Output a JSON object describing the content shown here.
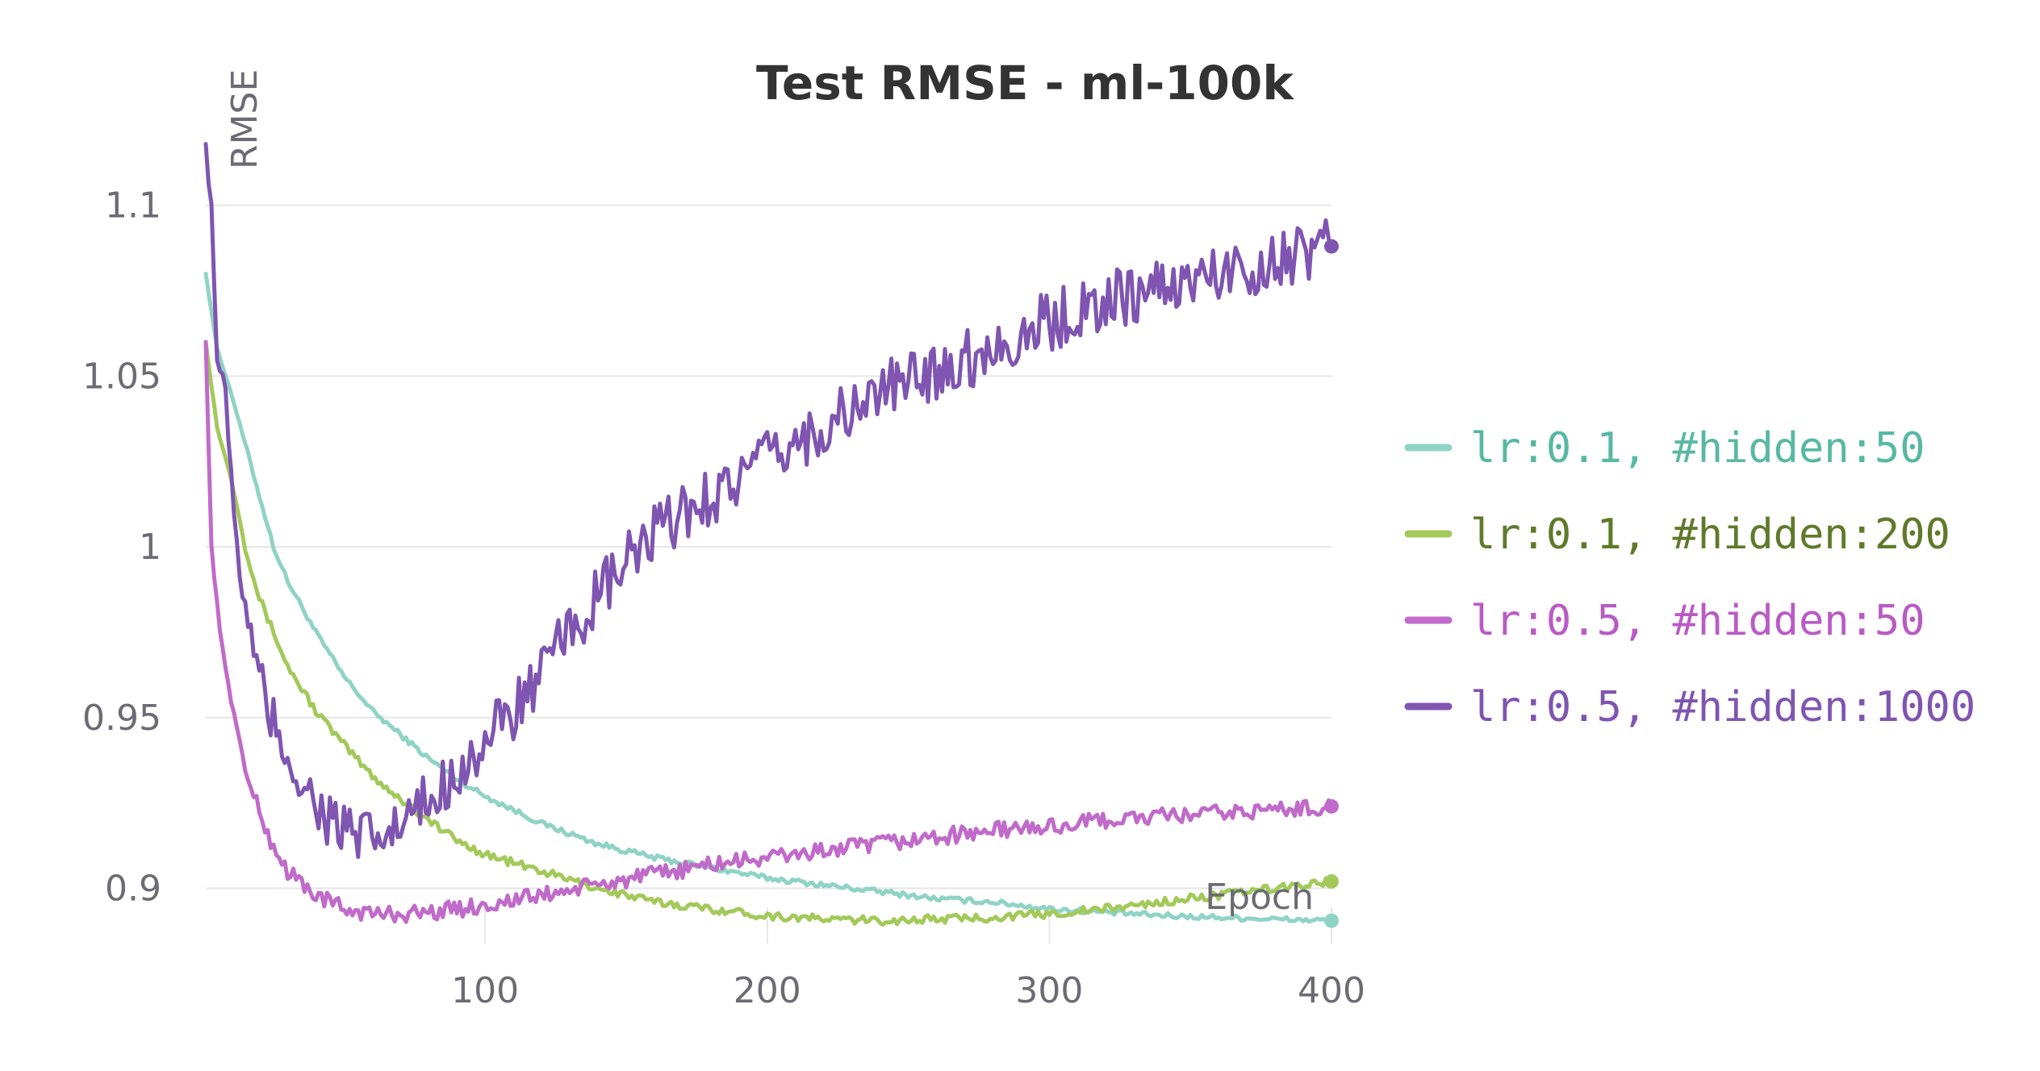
{
  "chart_data": {
    "type": "line",
    "title": "Test RMSE - ml-100k",
    "xlabel": "Epoch",
    "ylabel": "RMSE",
    "xlim": [
      1,
      400
    ],
    "ylim": [
      0.885,
      1.12
    ],
    "xticks": [
      100,
      200,
      300,
      400
    ],
    "yticks": [
      0.9,
      0.95,
      1,
      1.05,
      1.1
    ],
    "ytick_labels": [
      "0.9",
      "0.95",
      "1",
      "1.05",
      "1.1"
    ],
    "grid": "horizontal",
    "legend_position": "right",
    "series": [
      {
        "name": "lr:0.1, #hidden:50",
        "color": "#8fd3c5",
        "text_color": "#58b8a2",
        "points": [
          [
            1,
            1.08
          ],
          [
            5,
            1.058
          ],
          [
            10,
            1.045
          ],
          [
            15,
            1.03
          ],
          [
            20,
            1.015
          ],
          [
            25,
            1.0
          ],
          [
            30,
            0.99
          ],
          [
            40,
            0.975
          ],
          [
            50,
            0.962
          ],
          [
            60,
            0.952
          ],
          [
            70,
            0.945
          ],
          [
            80,
            0.938
          ],
          [
            90,
            0.932
          ],
          [
            100,
            0.927
          ],
          [
            110,
            0.923
          ],
          [
            120,
            0.919
          ],
          [
            140,
            0.913
          ],
          [
            160,
            0.909
          ],
          [
            180,
            0.906
          ],
          [
            200,
            0.903
          ],
          [
            220,
            0.901
          ],
          [
            240,
            0.899
          ],
          [
            260,
            0.897
          ],
          [
            280,
            0.896
          ],
          [
            300,
            0.894
          ],
          [
            320,
            0.893
          ],
          [
            340,
            0.892
          ],
          [
            360,
            0.8915
          ],
          [
            380,
            0.891
          ],
          [
            400,
            0.8905
          ]
        ]
      },
      {
        "name": "lr:0.1, #hidden:200",
        "color": "#a3c95a",
        "text_color": "#5f7a2a",
        "points": [
          [
            1,
            1.06
          ],
          [
            5,
            1.035
          ],
          [
            10,
            1.02
          ],
          [
            15,
            1.0
          ],
          [
            20,
            0.985
          ],
          [
            25,
            0.975
          ],
          [
            30,
            0.965
          ],
          [
            40,
            0.952
          ],
          [
            50,
            0.942
          ],
          [
            60,
            0.933
          ],
          [
            70,
            0.926
          ],
          [
            80,
            0.92
          ],
          [
            90,
            0.914
          ],
          [
            100,
            0.91
          ],
          [
            120,
            0.905
          ],
          [
            140,
            0.9
          ],
          [
            160,
            0.896
          ],
          [
            180,
            0.894
          ],
          [
            200,
            0.892
          ],
          [
            220,
            0.891
          ],
          [
            240,
            0.8905
          ],
          [
            260,
            0.891
          ],
          [
            280,
            0.8915
          ],
          [
            300,
            0.8925
          ],
          [
            320,
            0.894
          ],
          [
            340,
            0.896
          ],
          [
            360,
            0.898
          ],
          [
            380,
            0.9
          ],
          [
            400,
            0.902
          ]
        ]
      },
      {
        "name": "lr:0.5, #hidden:50",
        "color": "#c06bc9",
        "text_color": "#b95bc5",
        "points": [
          [
            1,
            1.06
          ],
          [
            3,
            1.0
          ],
          [
            6,
            0.975
          ],
          [
            10,
            0.955
          ],
          [
            15,
            0.935
          ],
          [
            20,
            0.922
          ],
          [
            25,
            0.912
          ],
          [
            30,
            0.905
          ],
          [
            40,
            0.898
          ],
          [
            50,
            0.894
          ],
          [
            60,
            0.8925
          ],
          [
            70,
            0.8925
          ],
          [
            80,
            0.893
          ],
          [
            90,
            0.894
          ],
          [
            100,
            0.895
          ],
          [
            120,
            0.898
          ],
          [
            140,
            0.901
          ],
          [
            160,
            0.904
          ],
          [
            180,
            0.907
          ],
          [
            200,
            0.909
          ],
          [
            220,
            0.911
          ],
          [
            240,
            0.913
          ],
          [
            260,
            0.915
          ],
          [
            280,
            0.917
          ],
          [
            300,
            0.918
          ],
          [
            320,
            0.92
          ],
          [
            340,
            0.921
          ],
          [
            360,
            0.922
          ],
          [
            380,
            0.923
          ],
          [
            400,
            0.924
          ]
        ]
      },
      {
        "name": "lr:0.5, #hidden:1000",
        "color": "#7f55b1",
        "text_color": "#7f55b1",
        "points": [
          [
            1,
            1.118
          ],
          [
            3,
            1.1
          ],
          [
            5,
            1.055
          ],
          [
            8,
            1.045
          ],
          [
            10,
            1.02
          ],
          [
            12,
            1.0
          ],
          [
            15,
            0.98
          ],
          [
            20,
            0.96
          ],
          [
            25,
            0.948
          ],
          [
            30,
            0.94
          ],
          [
            35,
            0.93
          ],
          [
            40,
            0.925
          ],
          [
            45,
            0.92
          ],
          [
            50,
            0.917
          ],
          [
            55,
            0.914
          ],
          [
            60,
            0.914
          ],
          [
            65,
            0.915
          ],
          [
            70,
            0.918
          ],
          [
            80,
            0.925
          ],
          [
            90,
            0.935
          ],
          [
            100,
            0.942
          ],
          [
            110,
            0.952
          ],
          [
            120,
            0.962
          ],
          [
            130,
            0.975
          ],
          [
            140,
            0.985
          ],
          [
            150,
            0.995
          ],
          [
            160,
            1.003
          ],
          [
            170,
            1.01
          ],
          [
            180,
            1.015
          ],
          [
            190,
            1.02
          ],
          [
            200,
            1.025
          ],
          [
            220,
            1.035
          ],
          [
            240,
            1.045
          ],
          [
            260,
            1.052
          ],
          [
            280,
            1.058
          ],
          [
            300,
            1.066
          ],
          [
            320,
            1.072
          ],
          [
            340,
            1.076
          ],
          [
            360,
            1.08
          ],
          [
            380,
            1.084
          ],
          [
            400,
            1.088
          ]
        ]
      }
    ]
  }
}
